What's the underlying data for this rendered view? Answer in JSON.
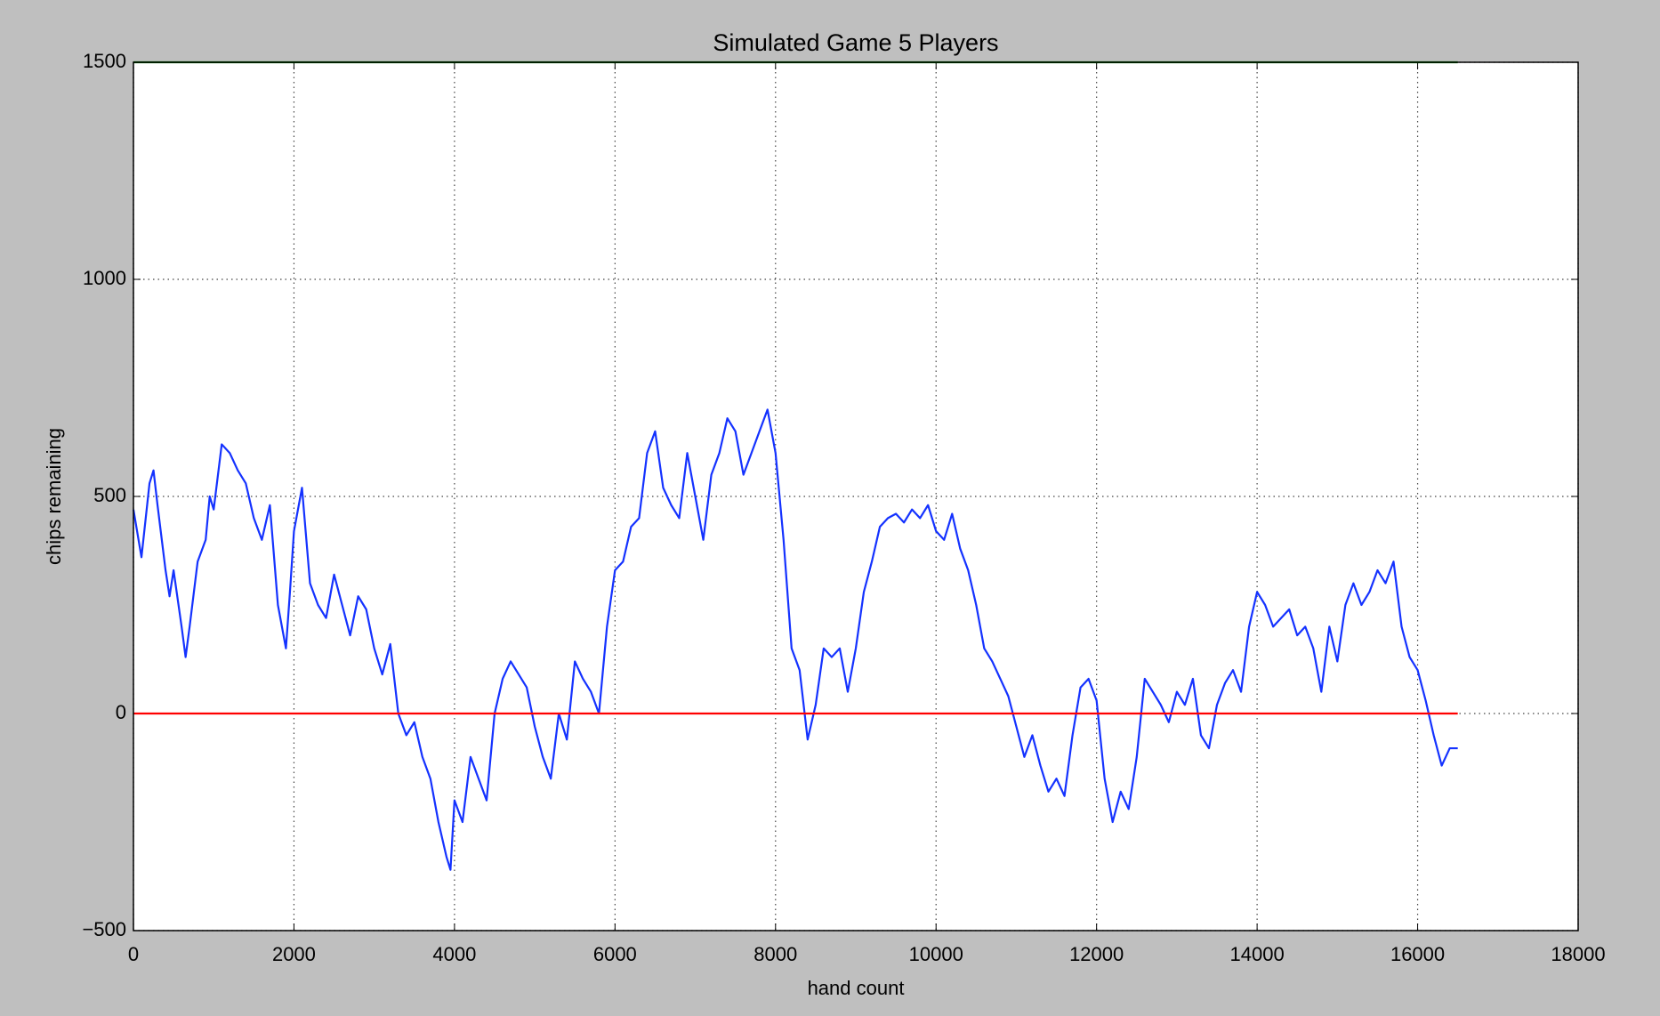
{
  "chart_data": {
    "type": "line",
    "title": "Simulated Game 5 Players",
    "x_label": "hand count",
    "y_label": "chips remaining",
    "xlim": [
      0,
      18000
    ],
    "xticks": [
      0,
      2000,
      4000,
      6000,
      8000,
      10000,
      12000,
      14000,
      16000,
      18000
    ],
    "ylim": [
      -500,
      1500
    ],
    "yticks": [
      {
        "value": -500,
        "label": "−500"
      },
      0,
      500,
      1000,
      1500
    ],
    "grid": true,
    "series": [
      {
        "color": "#1432ff",
        "x": [
          0,
          100,
          200,
          250,
          300,
          400,
          450,
          500,
          600,
          650,
          700,
          800,
          900,
          950,
          1000,
          1100,
          1200,
          1300,
          1400,
          1500,
          1600,
          1700,
          1800,
          1900,
          1950,
          2000,
          2100,
          2200,
          2300,
          2400,
          2500,
          2600,
          2700,
          2800,
          2900,
          3000,
          3100,
          3200,
          3300,
          3400,
          3500,
          3600,
          3700,
          3800,
          3900,
          3950,
          4000,
          4100,
          4200,
          4300,
          4400,
          4500,
          4600,
          4700,
          4800,
          4900,
          5000,
          5100,
          5200,
          5300,
          5400,
          5500,
          5600,
          5700,
          5800,
          5900,
          6000,
          6100,
          6200,
          6300,
          6400,
          6500,
          6600,
          6700,
          6800,
          6900,
          7000,
          7100,
          7200,
          7300,
          7400,
          7500,
          7600,
          7700,
          7800,
          7900,
          8000,
          8100,
          8200,
          8300,
          8400,
          8500,
          8600,
          8700,
          8800,
          8900,
          9000,
          9100,
          9200,
          9300,
          9400,
          9500,
          9600,
          9700,
          9800,
          9900,
          10000,
          10100,
          10200,
          10300,
          10400,
          10500,
          10600,
          10700,
          10800,
          10900,
          11000,
          11100,
          11200,
          11300,
          11400,
          11500,
          11600,
          11700,
          11800,
          11900,
          12000,
          12100,
          12200,
          12300,
          12400,
          12500,
          12600,
          12700,
          12800,
          12900,
          13000,
          13100,
          13200,
          13300,
          13400,
          13500,
          13600,
          13700,
          13800,
          13900,
          14000,
          14100,
          14200,
          14300,
          14400,
          14500,
          14600,
          14700,
          14800,
          14900,
          15000,
          15100,
          15200,
          15300,
          15400,
          15500,
          15600,
          15700,
          15800,
          15900,
          16000,
          16100,
          16200,
          16300,
          16400,
          16500
        ],
        "values": [
          470,
          360,
          530,
          560,
          480,
          330,
          270,
          330,
          200,
          130,
          200,
          350,
          400,
          500,
          470,
          620,
          600,
          560,
          530,
          450,
          400,
          480,
          250,
          150,
          280,
          420,
          520,
          300,
          250,
          220,
          320,
          250,
          180,
          270,
          240,
          150,
          90,
          160,
          0,
          -50,
          -20,
          -100,
          -150,
          -250,
          -330,
          -360,
          -200,
          -250,
          -100,
          -150,
          -200,
          0,
          80,
          120,
          90,
          60,
          -30,
          -100,
          -150,
          0,
          -60,
          120,
          80,
          50,
          0,
          200,
          330,
          350,
          430,
          450,
          600,
          650,
          520,
          480,
          450,
          600,
          500,
          400,
          550,
          600,
          680,
          650,
          550,
          600,
          650,
          700,
          600,
          400,
          150,
          100,
          -60,
          20,
          150,
          130,
          150,
          50,
          150,
          280,
          350,
          430,
          450,
          460,
          440,
          470,
          450,
          480,
          420,
          400,
          460,
          380,
          330,
          250,
          150,
          120,
          80,
          40,
          -30,
          -100,
          -50,
          -120,
          -180,
          -150,
          -190,
          -50,
          60,
          80,
          30,
          -150,
          -250,
          -180,
          -220,
          -100,
          80,
          50,
          20,
          -20,
          50,
          20,
          80,
          -50,
          -80,
          20,
          70,
          100,
          50,
          200,
          280,
          250,
          200,
          220,
          240,
          180,
          200,
          150,
          50,
          200,
          120,
          250,
          300,
          250,
          280,
          330,
          300,
          350,
          200,
          130,
          100,
          30,
          -50,
          -120,
          -80,
          -80
        ]
      },
      {
        "color": "#ff0000",
        "x": [
          0,
          16500
        ],
        "values": [
          0,
          0
        ]
      },
      {
        "color": "#008000",
        "x": [
          0,
          16500
        ],
        "values": [
          1500,
          1500
        ]
      }
    ]
  }
}
